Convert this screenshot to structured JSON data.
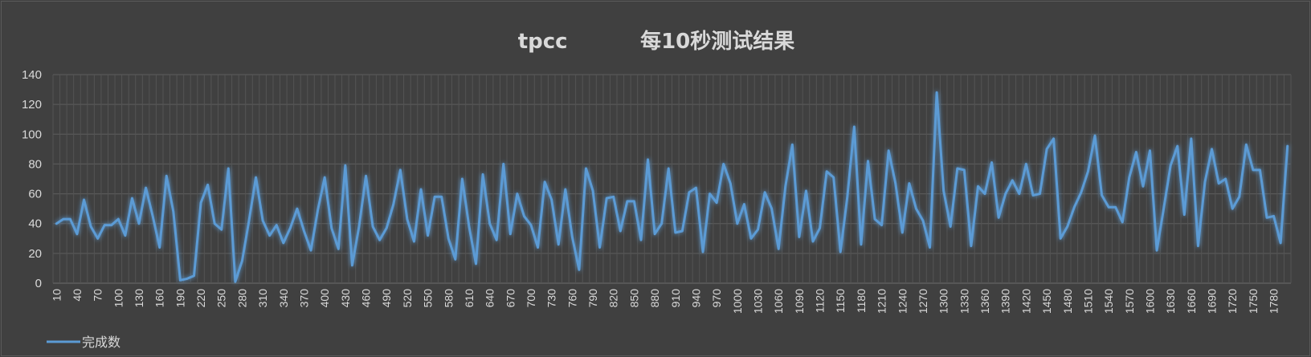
{
  "chart_data": {
    "type": "line",
    "title": "tpcc          每10秒测试结果",
    "xlabel": "",
    "ylabel": "",
    "ylim": [
      0,
      140
    ],
    "yticks": [
      0,
      20,
      40,
      60,
      80,
      100,
      120,
      140
    ],
    "x": [
      10,
      20,
      30,
      40,
      50,
      60,
      70,
      80,
      90,
      100,
      110,
      120,
      130,
      140,
      150,
      160,
      170,
      180,
      190,
      200,
      210,
      220,
      230,
      240,
      250,
      260,
      270,
      280,
      290,
      300,
      310,
      320,
      330,
      340,
      350,
      360,
      370,
      380,
      390,
      400,
      410,
      420,
      430,
      440,
      450,
      460,
      470,
      480,
      490,
      500,
      510,
      520,
      530,
      540,
      550,
      560,
      570,
      580,
      590,
      600,
      610,
      620,
      630,
      640,
      650,
      660,
      670,
      680,
      690,
      700,
      710,
      720,
      730,
      740,
      750,
      760,
      770,
      780,
      790,
      800,
      810,
      820,
      830,
      840,
      850,
      860,
      870,
      880,
      890,
      900,
      910,
      920,
      930,
      940,
      950,
      960,
      970,
      980,
      990,
      1000,
      1010,
      1020,
      1030,
      1040,
      1050,
      1060,
      1070,
      1080,
      1090,
      1100,
      1110,
      1120,
      1130,
      1140,
      1150,
      1160,
      1170,
      1180,
      1190,
      1200,
      1210,
      1220,
      1230,
      1240,
      1250,
      1260,
      1270,
      1280,
      1290,
      1300,
      1310,
      1320,
      1330,
      1340,
      1350,
      1360,
      1370,
      1380,
      1390,
      1400,
      1410,
      1420,
      1430,
      1440,
      1450,
      1460,
      1470,
      1480,
      1490,
      1500,
      1510,
      1520,
      1530,
      1540,
      1550,
      1560,
      1570,
      1580,
      1590,
      1600,
      1610,
      1620,
      1630,
      1640,
      1650,
      1660,
      1670,
      1680,
      1690,
      1700,
      1710,
      1720,
      1730,
      1740,
      1750,
      1760,
      1770,
      1780,
      1790,
      1800
    ],
    "x_tick_labels": [
      "10",
      "40",
      "70",
      "100",
      "130",
      "160",
      "190",
      "220",
      "250",
      "280",
      "310",
      "340",
      "370",
      "400",
      "430",
      "460",
      "490",
      "520",
      "550",
      "580",
      "610",
      "640",
      "670",
      "700",
      "730",
      "760",
      "790",
      "820",
      "850",
      "880",
      "910",
      "940",
      "970",
      "1000",
      "1030",
      "1060",
      "1090",
      "1120",
      "1150",
      "1180",
      "1210",
      "1240",
      "1270",
      "1300",
      "1330",
      "1360",
      "1390",
      "1420",
      "1450",
      "1480",
      "1510",
      "1540",
      "1570",
      "1600",
      "1630",
      "1660",
      "1690",
      "1720",
      "1750",
      "1780"
    ],
    "series": [
      {
        "name": "完成数",
        "color": "#5b9bd5",
        "values": [
          40,
          43,
          43,
          33,
          56,
          38,
          30,
          39,
          39,
          43,
          32,
          57,
          40,
          64,
          45,
          24,
          72,
          48,
          2,
          3,
          5,
          54,
          66,
          40,
          36,
          77,
          1,
          15,
          42,
          71,
          42,
          32,
          39,
          27,
          37,
          50,
          35,
          22,
          49,
          71,
          37,
          23,
          79,
          12,
          38,
          72,
          38,
          29,
          37,
          53,
          76,
          43,
          28,
          63,
          32,
          58,
          58,
          30,
          16,
          70,
          38,
          13,
          73,
          40,
          29,
          80,
          33,
          60,
          45,
          39,
          24,
          68,
          56,
          26,
          63,
          31,
          9,
          77,
          62,
          24,
          57,
          58,
          35,
          55,
          55,
          29,
          83,
          33,
          40,
          77,
          34,
          35,
          61,
          64,
          21,
          60,
          54,
          80,
          67,
          40,
          53,
          30,
          36,
          61,
          50,
          23,
          65,
          93,
          31,
          62,
          28,
          37,
          75,
          71,
          21,
          58,
          105,
          26,
          82,
          43,
          39,
          89,
          67,
          34,
          67,
          50,
          42,
          24,
          128,
          62,
          38,
          77,
          76,
          25,
          65,
          60,
          81,
          44,
          60,
          69,
          60,
          80,
          59,
          60,
          90,
          97,
          30,
          38,
          51,
          61,
          75,
          99,
          59,
          51,
          51,
          41,
          71,
          88,
          65,
          89,
          22,
          50,
          79,
          92,
          46,
          97,
          25,
          68,
          90,
          67,
          70,
          50,
          58,
          93,
          76,
          76,
          44,
          45,
          27,
          92
        ]
      }
    ],
    "grid": true,
    "legend": "bottom-left"
  }
}
